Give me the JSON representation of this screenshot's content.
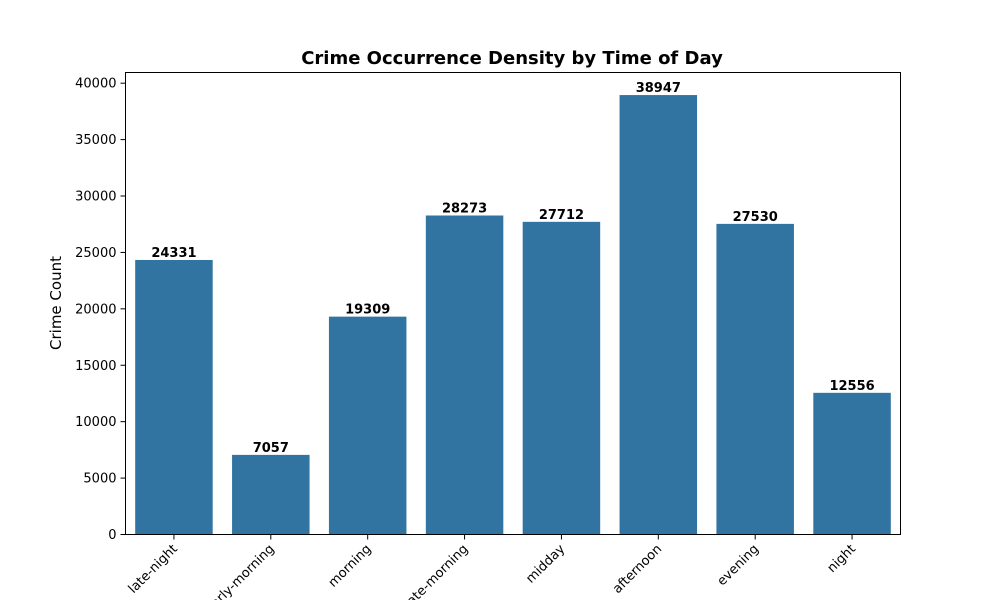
{
  "chart_data": {
    "type": "bar",
    "title": "Crime Occurrence Density by Time of Day",
    "xlabel": "",
    "ylabel": "Crime Count",
    "categories": [
      "late-night",
      "early-morning",
      "morning",
      "late-morning",
      "midday",
      "afternoon",
      "evening",
      "night"
    ],
    "values": [
      24331,
      7057,
      19309,
      28273,
      27712,
      38947,
      27530,
      12556
    ],
    "ylim": [
      0,
      40947
    ],
    "yticks": [
      0,
      5000,
      10000,
      15000,
      20000,
      25000,
      30000,
      35000,
      40000
    ],
    "bar_color": "#3274a1",
    "grid": false,
    "legend": "none"
  }
}
